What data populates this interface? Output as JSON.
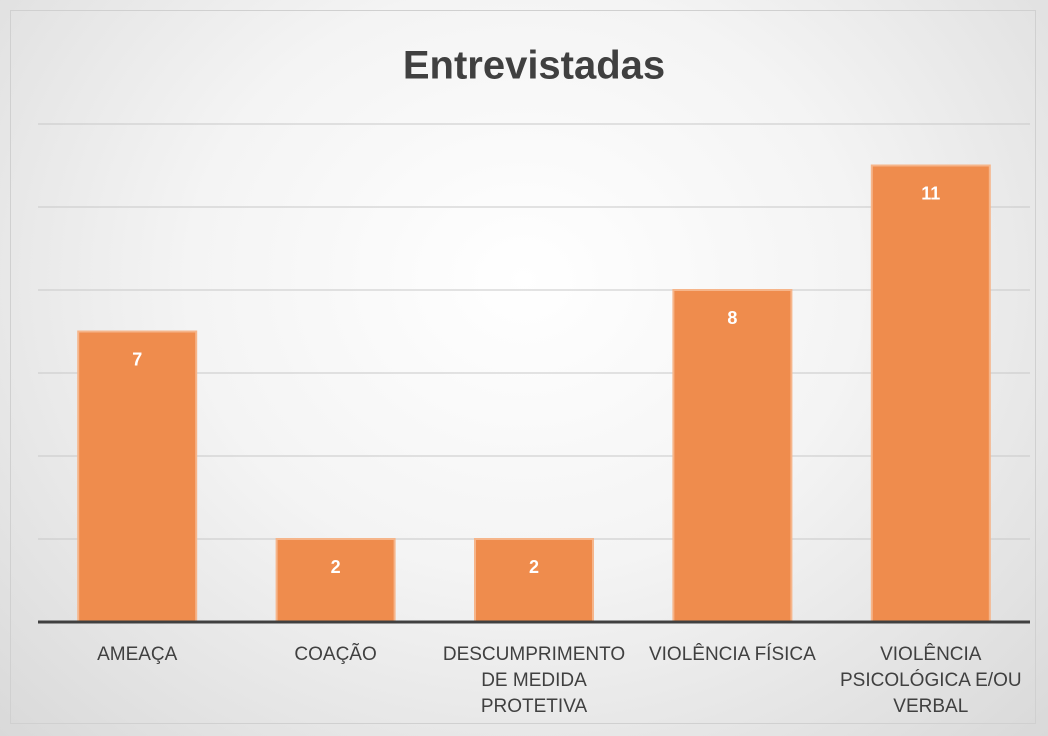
{
  "chart_data": {
    "type": "bar",
    "title": "Entrevistadas",
    "categories": [
      "AMEAÇA",
      "COAÇÃO",
      "DESCUMPRIMENTO DE MEDIDA PROTETIVA",
      "VIOLÊNCIA FÍSICA",
      "VIOLÊNCIA PSICOLÓGICA E/OU VERBAL"
    ],
    "values": [
      7,
      2,
      2,
      8,
      11
    ],
    "color": "#ef8c4d",
    "ylim": [
      0,
      12
    ],
    "yticks": [
      0,
      2,
      4,
      6,
      8,
      10,
      12
    ],
    "grid": true
  }
}
